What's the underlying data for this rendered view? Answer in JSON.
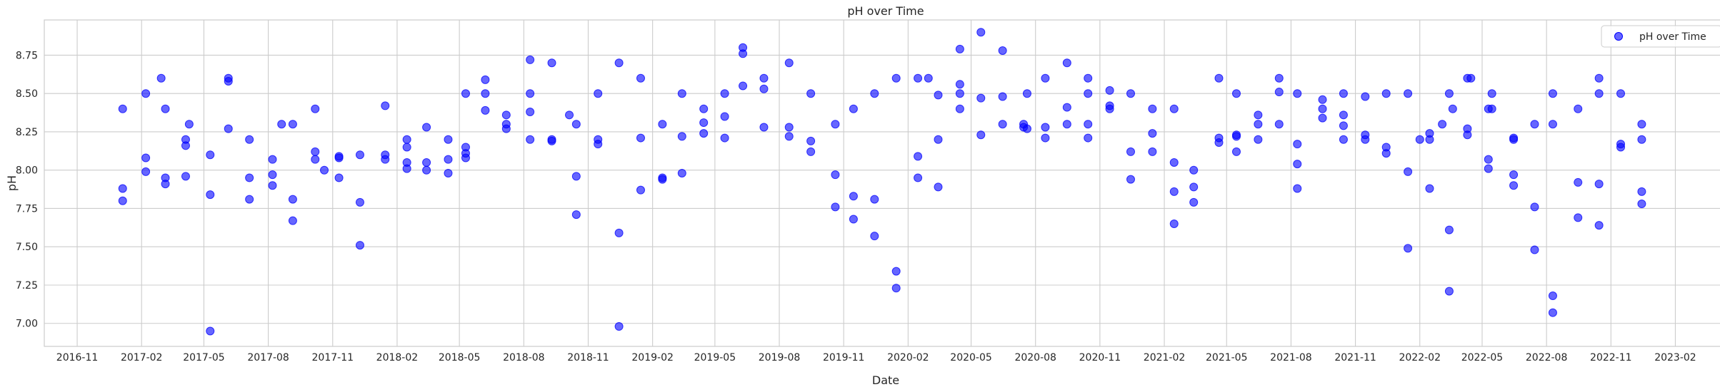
{
  "chart_data": {
    "type": "scatter",
    "title": "pH over Time",
    "xlabel": "Date",
    "ylabel": "pH",
    "ylim": [
      6.85,
      8.98
    ],
    "xlim": [
      "2016-09-15",
      "2023-04-15"
    ],
    "grid": true,
    "legend": {
      "position": "top-right",
      "entries": [
        "pH over Time"
      ]
    },
    "colors": {
      "marker": "#0000ff",
      "grid": "#cccccc",
      "frame": "#cccccc"
    },
    "x_ticks": [
      "2016-11",
      "2017-02",
      "2017-05",
      "2017-08",
      "2017-11",
      "2018-02",
      "2018-05",
      "2018-08",
      "2018-11",
      "2019-02",
      "2019-05",
      "2019-08",
      "2019-11",
      "2020-02",
      "2020-05",
      "2020-08",
      "2020-11",
      "2021-02",
      "2021-05",
      "2021-08",
      "2021-11",
      "2022-02",
      "2022-05",
      "2022-08",
      "2022-11",
      "2023-02"
    ],
    "y_ticks": [
      "7.00",
      "7.25",
      "7.50",
      "7.75",
      "8.00",
      "8.25",
      "8.50",
      "8.75"
    ],
    "series": [
      {
        "name": "pH over Time",
        "points": [
          [
            "2017-01-05",
            8.4
          ],
          [
            "2017-01-05",
            7.88
          ],
          [
            "2017-01-05",
            7.8
          ],
          [
            "2017-02-07",
            8.5
          ],
          [
            "2017-02-07",
            8.08
          ],
          [
            "2017-02-07",
            7.99
          ],
          [
            "2017-03-01",
            8.6
          ],
          [
            "2017-03-07",
            8.4
          ],
          [
            "2017-03-07",
            7.95
          ],
          [
            "2017-03-07",
            7.91
          ],
          [
            "2017-04-05",
            8.2
          ],
          [
            "2017-04-05",
            8.16
          ],
          [
            "2017-04-05",
            7.96
          ],
          [
            "2017-04-10",
            8.3
          ],
          [
            "2017-05-10",
            8.1
          ],
          [
            "2017-05-10",
            7.84
          ],
          [
            "2017-05-10",
            6.95
          ],
          [
            "2017-06-05",
            8.6
          ],
          [
            "2017-06-05",
            8.58
          ],
          [
            "2017-06-05",
            8.27
          ],
          [
            "2017-07-05",
            8.2
          ],
          [
            "2017-07-05",
            7.95
          ],
          [
            "2017-07-05",
            7.81
          ],
          [
            "2017-08-07",
            8.07
          ],
          [
            "2017-08-07",
            7.97
          ],
          [
            "2017-08-07",
            7.9
          ],
          [
            "2017-08-20",
            8.3
          ],
          [
            "2017-09-05",
            8.3
          ],
          [
            "2017-09-05",
            7.81
          ],
          [
            "2017-09-05",
            7.67
          ],
          [
            "2017-10-07",
            8.4
          ],
          [
            "2017-10-07",
            8.12
          ],
          [
            "2017-10-07",
            8.07
          ],
          [
            "2017-10-20",
            8.0
          ],
          [
            "2017-11-10",
            8.09
          ],
          [
            "2017-11-10",
            8.08
          ],
          [
            "2017-11-10",
            7.95
          ],
          [
            "2017-12-10",
            8.1
          ],
          [
            "2017-12-10",
            7.79
          ],
          [
            "2017-12-10",
            7.51
          ],
          [
            "2018-01-15",
            8.42
          ],
          [
            "2018-01-15",
            8.1
          ],
          [
            "2018-01-15",
            8.07
          ],
          [
            "2018-02-15",
            8.2
          ],
          [
            "2018-02-15",
            8.15
          ],
          [
            "2018-02-15",
            8.05
          ],
          [
            "2018-02-15",
            8.01
          ],
          [
            "2018-03-15",
            8.28
          ],
          [
            "2018-03-15",
            8.05
          ],
          [
            "2018-03-15",
            8.0
          ],
          [
            "2018-04-15",
            8.2
          ],
          [
            "2018-04-15",
            8.07
          ],
          [
            "2018-04-15",
            7.98
          ],
          [
            "2018-05-10",
            8.5
          ],
          [
            "2018-05-10",
            8.15
          ],
          [
            "2018-05-10",
            8.11
          ],
          [
            "2018-05-10",
            8.08
          ],
          [
            "2018-06-07",
            8.59
          ],
          [
            "2018-06-07",
            8.5
          ],
          [
            "2018-06-07",
            8.39
          ],
          [
            "2018-07-07",
            8.36
          ],
          [
            "2018-07-07",
            8.3
          ],
          [
            "2018-07-07",
            8.27
          ],
          [
            "2018-08-10",
            8.72
          ],
          [
            "2018-08-10",
            8.5
          ],
          [
            "2018-08-10",
            8.38
          ],
          [
            "2018-08-10",
            8.2
          ],
          [
            "2018-09-10",
            8.7
          ],
          [
            "2018-09-10",
            8.2
          ],
          [
            "2018-09-10",
            8.19
          ],
          [
            "2018-10-05",
            8.36
          ],
          [
            "2018-10-15",
            8.3
          ],
          [
            "2018-10-15",
            7.96
          ],
          [
            "2018-10-15",
            7.71
          ],
          [
            "2018-11-15",
            8.5
          ],
          [
            "2018-11-15",
            8.2
          ],
          [
            "2018-11-15",
            8.17
          ],
          [
            "2018-12-15",
            8.7
          ],
          [
            "2018-12-15",
            7.59
          ],
          [
            "2018-12-15",
            6.98
          ],
          [
            "2019-01-15",
            8.6
          ],
          [
            "2019-01-15",
            8.21
          ],
          [
            "2019-01-15",
            7.87
          ],
          [
            "2019-02-15",
            8.3
          ],
          [
            "2019-02-15",
            7.95
          ],
          [
            "2019-02-15",
            7.94
          ],
          [
            "2019-03-15",
            8.5
          ],
          [
            "2019-03-15",
            8.22
          ],
          [
            "2019-03-15",
            7.98
          ],
          [
            "2019-04-15",
            8.4
          ],
          [
            "2019-04-15",
            8.31
          ],
          [
            "2019-04-15",
            8.24
          ],
          [
            "2019-05-15",
            8.5
          ],
          [
            "2019-05-15",
            8.35
          ],
          [
            "2019-05-15",
            8.21
          ],
          [
            "2019-06-10",
            8.8
          ],
          [
            "2019-06-10",
            8.76
          ],
          [
            "2019-06-10",
            8.55
          ],
          [
            "2019-07-10",
            8.6
          ],
          [
            "2019-07-10",
            8.53
          ],
          [
            "2019-07-10",
            8.28
          ],
          [
            "2019-08-15",
            8.7
          ],
          [
            "2019-08-15",
            8.28
          ],
          [
            "2019-08-15",
            8.22
          ],
          [
            "2019-09-15",
            8.5
          ],
          [
            "2019-09-15",
            8.19
          ],
          [
            "2019-09-15",
            8.12
          ],
          [
            "2019-10-20",
            8.3
          ],
          [
            "2019-10-20",
            7.97
          ],
          [
            "2019-10-20",
            7.76
          ],
          [
            "2019-11-15",
            8.4
          ],
          [
            "2019-11-15",
            7.83
          ],
          [
            "2019-11-15",
            7.68
          ],
          [
            "2019-12-15",
            8.5
          ],
          [
            "2019-12-15",
            7.81
          ],
          [
            "2019-12-15",
            7.57
          ],
          [
            "2020-01-15",
            8.6
          ],
          [
            "2020-01-15",
            7.34
          ],
          [
            "2020-01-15",
            7.23
          ],
          [
            "2020-02-15",
            8.6
          ],
          [
            "2020-02-15",
            8.09
          ],
          [
            "2020-02-15",
            7.95
          ],
          [
            "2020-03-01",
            8.6
          ],
          [
            "2020-03-15",
            8.49
          ],
          [
            "2020-03-15",
            8.2
          ],
          [
            "2020-03-15",
            7.89
          ],
          [
            "2020-04-15",
            8.79
          ],
          [
            "2020-04-15",
            8.56
          ],
          [
            "2020-04-15",
            8.5
          ],
          [
            "2020-04-15",
            8.4
          ],
          [
            "2020-05-15",
            8.9
          ],
          [
            "2020-05-15",
            8.47
          ],
          [
            "2020-05-15",
            8.23
          ],
          [
            "2020-06-15",
            8.78
          ],
          [
            "2020-06-15",
            8.48
          ],
          [
            "2020-06-15",
            8.3
          ],
          [
            "2020-07-15",
            8.3
          ],
          [
            "2020-07-15",
            8.28
          ],
          [
            "2020-07-20",
            8.5
          ],
          [
            "2020-07-20",
            8.27
          ],
          [
            "2020-08-15",
            8.6
          ],
          [
            "2020-08-15",
            8.28
          ],
          [
            "2020-08-15",
            8.21
          ],
          [
            "2020-09-15",
            8.7
          ],
          [
            "2020-09-15",
            8.41
          ],
          [
            "2020-09-15",
            8.3
          ],
          [
            "2020-10-15",
            8.6
          ],
          [
            "2020-10-15",
            8.5
          ],
          [
            "2020-10-15",
            8.3
          ],
          [
            "2020-10-15",
            8.21
          ],
          [
            "2020-11-15",
            8.52
          ],
          [
            "2020-11-15",
            8.42
          ],
          [
            "2020-11-15",
            8.4
          ],
          [
            "2020-12-15",
            8.5
          ],
          [
            "2020-12-15",
            8.12
          ],
          [
            "2020-12-15",
            7.94
          ],
          [
            "2021-01-15",
            8.4
          ],
          [
            "2021-01-15",
            8.24
          ],
          [
            "2021-01-15",
            8.12
          ],
          [
            "2021-02-15",
            8.4
          ],
          [
            "2021-02-15",
            8.05
          ],
          [
            "2021-02-15",
            7.86
          ],
          [
            "2021-02-15",
            7.65
          ],
          [
            "2021-03-15",
            8.0
          ],
          [
            "2021-03-15",
            7.89
          ],
          [
            "2021-03-15",
            7.79
          ],
          [
            "2021-04-20",
            8.6
          ],
          [
            "2021-04-20",
            8.21
          ],
          [
            "2021-04-20",
            8.18
          ],
          [
            "2021-05-15",
            8.5
          ],
          [
            "2021-05-15",
            8.23
          ],
          [
            "2021-05-15",
            8.22
          ],
          [
            "2021-05-15",
            8.12
          ],
          [
            "2021-06-15",
            8.36
          ],
          [
            "2021-06-15",
            8.3
          ],
          [
            "2021-06-15",
            8.2
          ],
          [
            "2021-07-15",
            8.6
          ],
          [
            "2021-07-15",
            8.51
          ],
          [
            "2021-07-15",
            8.3
          ],
          [
            "2021-08-10",
            8.5
          ],
          [
            "2021-08-10",
            8.17
          ],
          [
            "2021-08-10",
            8.04
          ],
          [
            "2021-08-10",
            7.88
          ],
          [
            "2021-09-15",
            8.46
          ],
          [
            "2021-09-15",
            8.4
          ],
          [
            "2021-09-15",
            8.34
          ],
          [
            "2021-10-15",
            8.5
          ],
          [
            "2021-10-15",
            8.36
          ],
          [
            "2021-10-15",
            8.29
          ],
          [
            "2021-10-15",
            8.2
          ],
          [
            "2021-11-15",
            8.48
          ],
          [
            "2021-11-15",
            8.23
          ],
          [
            "2021-11-15",
            8.2
          ],
          [
            "2021-12-15",
            8.5
          ],
          [
            "2021-12-15",
            8.15
          ],
          [
            "2021-12-15",
            8.11
          ],
          [
            "2022-01-15",
            8.5
          ],
          [
            "2022-01-15",
            7.99
          ],
          [
            "2022-01-15",
            7.49
          ],
          [
            "2022-02-01",
            8.2
          ],
          [
            "2022-02-15",
            8.24
          ],
          [
            "2022-02-15",
            8.2
          ],
          [
            "2022-02-15",
            7.88
          ],
          [
            "2022-03-05",
            8.3
          ],
          [
            "2022-03-15",
            8.5
          ],
          [
            "2022-03-15",
            7.61
          ],
          [
            "2022-03-15",
            7.21
          ],
          [
            "2022-03-20",
            8.4
          ],
          [
            "2022-04-10",
            8.6
          ],
          [
            "2022-04-10",
            8.27
          ],
          [
            "2022-04-10",
            8.23
          ],
          [
            "2022-04-15",
            8.6
          ],
          [
            "2022-05-10",
            8.4
          ],
          [
            "2022-05-10",
            8.07
          ],
          [
            "2022-05-10",
            8.01
          ],
          [
            "2022-05-15",
            8.5
          ],
          [
            "2022-05-15",
            8.4
          ],
          [
            "2022-06-15",
            8.21
          ],
          [
            "2022-06-15",
            8.2
          ],
          [
            "2022-06-15",
            7.97
          ],
          [
            "2022-06-15",
            7.9
          ],
          [
            "2022-07-15",
            8.3
          ],
          [
            "2022-07-15",
            7.76
          ],
          [
            "2022-07-15",
            7.48
          ],
          [
            "2022-08-10",
            8.5
          ],
          [
            "2022-08-10",
            8.3
          ],
          [
            "2022-08-10",
            7.18
          ],
          [
            "2022-08-10",
            7.07
          ],
          [
            "2022-09-15",
            8.4
          ],
          [
            "2022-09-15",
            7.92
          ],
          [
            "2022-09-15",
            7.69
          ],
          [
            "2022-10-15",
            8.6
          ],
          [
            "2022-10-15",
            8.5
          ],
          [
            "2022-10-15",
            7.91
          ],
          [
            "2022-10-15",
            7.64
          ],
          [
            "2022-11-15",
            8.5
          ],
          [
            "2022-11-15",
            8.17
          ],
          [
            "2022-11-15",
            8.15
          ],
          [
            "2022-12-15",
            8.3
          ],
          [
            "2022-12-15",
            8.2
          ],
          [
            "2022-12-15",
            7.86
          ],
          [
            "2022-12-15",
            7.78
          ]
        ]
      }
    ]
  }
}
